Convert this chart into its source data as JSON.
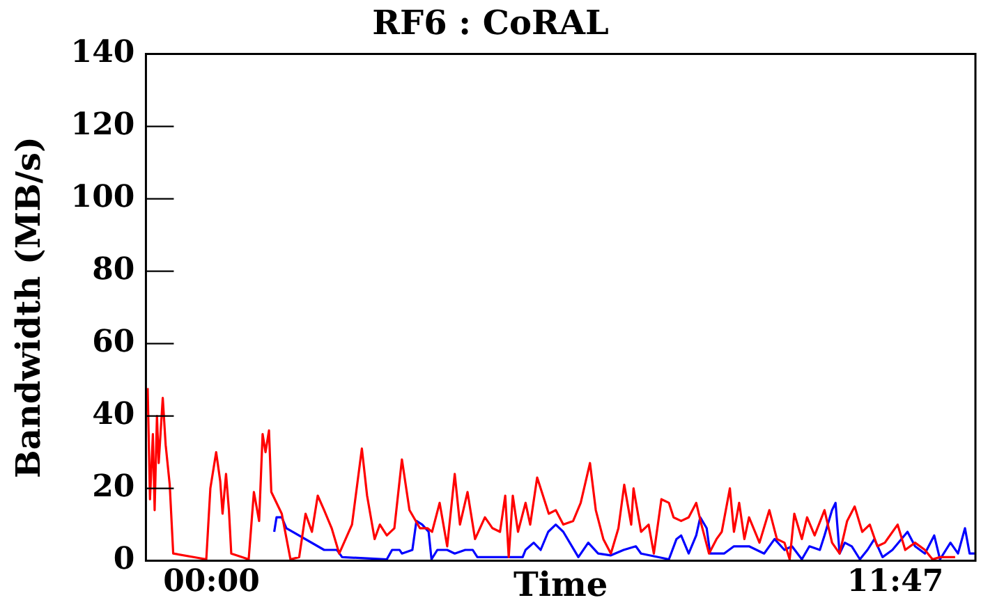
{
  "chart_data": {
    "type": "line",
    "title": "RF6 : CoRAL",
    "xlabel": "Time",
    "ylabel": "Bandwidth (MB/s)",
    "xlim": [
      -1.13,
      13.16
    ],
    "xticks": [
      {
        "value": 0,
        "label": "00:00"
      },
      {
        "value": 11.78,
        "label": "11:47"
      }
    ],
    "ylim": [
      0,
      140
    ],
    "yticks": [
      0,
      20,
      40,
      60,
      80,
      100,
      120,
      140
    ],
    "grid": false,
    "legend": false,
    "marker": "none",
    "line_style": "solid",
    "series": [
      {
        "color": "#ff0000",
        "x": [
          -1.1,
          -1.06,
          -1.01,
          -0.98,
          -0.94,
          -0.91,
          -0.84,
          -0.79,
          -0.72,
          -0.66,
          -0.09,
          -0.02,
          0.08,
          0.15,
          0.19,
          0.25,
          0.3,
          0.34,
          0.64,
          0.73,
          0.82,
          0.88,
          0.93,
          0.99,
          1.03,
          1.21,
          1.36,
          1.51,
          1.62,
          1.73,
          1.83,
          1.94,
          2.07,
          2.2,
          2.42,
          2.59,
          2.68,
          2.81,
          2.9,
          3.02,
          3.15,
          3.28,
          3.41,
          3.59,
          3.72,
          3.8,
          3.93,
          4.06,
          4.19,
          4.28,
          4.41,
          4.54,
          4.71,
          4.84,
          4.97,
          5.06,
          5.12,
          5.19,
          5.28,
          5.41,
          5.49,
          5.61,
          5.71,
          5.81,
          5.93,
          6.06,
          6.23,
          6.36,
          6.52,
          6.62,
          6.75,
          6.88,
          7.01,
          7.11,
          7.23,
          7.27,
          7.4,
          7.53,
          7.62,
          7.75,
          7.88,
          7.96,
          8.09,
          8.22,
          8.35,
          8.44,
          8.57,
          8.7,
          8.79,
          8.93,
          9.0,
          9.09,
          9.18,
          9.26,
          9.44,
          9.61,
          9.74,
          9.87,
          9.96,
          10.04,
          10.17,
          10.26,
          10.39,
          10.56,
          10.69,
          10.82,
          10.95,
          11.08,
          11.21,
          11.34,
          11.47,
          11.6,
          11.82,
          11.95,
          12.12,
          12.29,
          12.42,
          12.55,
          12.81
        ],
        "values": [
          47.7,
          17,
          35,
          14,
          40,
          27,
          45,
          32,
          21,
          2,
          0.4,
          20,
          30,
          22,
          13,
          24,
          14,
          2,
          0.4,
          19,
          11,
          35,
          30,
          36,
          19,
          13,
          0.4,
          1,
          13,
          8,
          18,
          14,
          9,
          2,
          10,
          31,
          18,
          6,
          10,
          7,
          9,
          28,
          14,
          9,
          9,
          8,
          16,
          4,
          24,
          10,
          19,
          6,
          12,
          9,
          8,
          18,
          1,
          18,
          8,
          16,
          10,
          23,
          18,
          13,
          14,
          10,
          11,
          16,
          27,
          14,
          6,
          2,
          9,
          21,
          10,
          20,
          8,
          10,
          2,
          17,
          16,
          12,
          11,
          12,
          16,
          10,
          2,
          6,
          8,
          20,
          8,
          16,
          6,
          12,
          5,
          14,
          6,
          5,
          0.4,
          13,
          6,
          12,
          7,
          14,
          5,
          2,
          11,
          15,
          8,
          10,
          4,
          5,
          10,
          3,
          5,
          3,
          0.4,
          1,
          1
        ]
      },
      {
        "color": "#0000ff",
        "x": [
          1.08,
          1.12,
          1.21,
          1.29,
          1.94,
          2.16,
          2.25,
          3.02,
          3.11,
          3.24,
          3.28,
          3.46,
          3.53,
          3.63,
          3.74,
          3.79,
          3.89,
          4.06,
          4.19,
          4.37,
          4.5,
          4.58,
          5.36,
          5.41,
          5.55,
          5.67,
          5.8,
          5.93,
          6.06,
          6.32,
          6.49,
          6.66,
          6.88,
          7.1,
          7.31,
          7.4,
          7.88,
          8.01,
          8.09,
          8.22,
          8.35,
          8.42,
          8.53,
          8.59,
          8.83,
          9.0,
          9.26,
          9.52,
          9.7,
          9.87,
          10.0,
          10.17,
          10.3,
          10.48,
          10.56,
          10.69,
          10.75,
          10.82,
          10.91,
          11.03,
          11.17,
          11.3,
          11.42,
          11.56,
          11.73,
          11.99,
          12.12,
          12.29,
          12.45,
          12.55,
          12.73,
          12.86,
          12.98,
          13.06,
          13.16
        ],
        "values": [
          8,
          12,
          12,
          9,
          3,
          3,
          1,
          0.4,
          3,
          3,
          2,
          3,
          11,
          10,
          8,
          0.4,
          3,
          3,
          2,
          3,
          3,
          1,
          1,
          3,
          5,
          3,
          8,
          10,
          8,
          1,
          5,
          2,
          1.5,
          3,
          4,
          2,
          0.4,
          6,
          7,
          2,
          7,
          12,
          9,
          2,
          2,
          4,
          4,
          2,
          6,
          3,
          4,
          0.4,
          4,
          3,
          7,
          14,
          16,
          2,
          5,
          4,
          0.4,
          3,
          6,
          1,
          3,
          8,
          4,
          2,
          7,
          0.4,
          5,
          2,
          9,
          2,
          2
        ]
      }
    ]
  }
}
